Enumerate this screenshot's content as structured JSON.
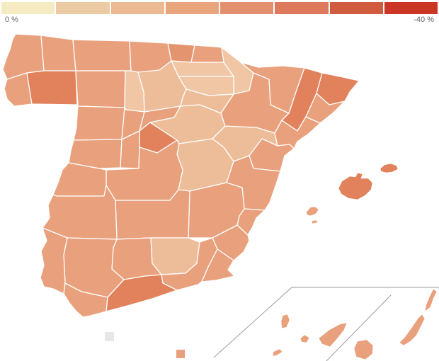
{
  "legend": {
    "min_label": "0 %",
    "max_label": "-40 %",
    "colors": [
      "#F5ECC4",
      "#EDCBA2",
      "#EBB992",
      "#E7A47D",
      "#E29070",
      "#DC7A5B",
      "#D15B3F",
      "#CB3523"
    ]
  },
  "palette": {
    "base": "#E9A07C",
    "mid": "#E59470",
    "light": "#F0C6A4",
    "tan": "#EDBD9A",
    "dark": "#E1825C",
    "gray": "#E7E7E7"
  },
  "map": {
    "inset_line_color": "#9a9a9a",
    "provinces": {
      "coruna": {
        "name": "A Coruña",
        "shade": "base"
      },
      "lugo": {
        "name": "Lugo",
        "shade": "base"
      },
      "pontevedra": {
        "name": "Pontevedra",
        "shade": "base"
      },
      "ourense": {
        "name": "Ourense",
        "shade": "dark"
      },
      "asturias": {
        "name": "Asturias",
        "shade": "base"
      },
      "leon": {
        "name": "León",
        "shade": "base"
      },
      "cantabria": {
        "name": "Cantabria",
        "shade": "base"
      },
      "palencia": {
        "name": "Palencia",
        "shade": "light"
      },
      "bizkaia": {
        "name": "Bizkaia",
        "shade": "mid"
      },
      "gipuzkoa": {
        "name": "Gipuzkoa",
        "shade": "base"
      },
      "araba": {
        "name": "Araba/Álava",
        "shade": "light"
      },
      "navarra": {
        "name": "Navarra",
        "shade": "light"
      },
      "larioja": {
        "name": "La Rioja",
        "shade": "light"
      },
      "burgos": {
        "name": "Burgos",
        "shade": "tan"
      },
      "soria": {
        "name": "Soria",
        "shade": "tan"
      },
      "zamora": {
        "name": "Zamora",
        "shade": "base"
      },
      "valladolid": {
        "name": "Valladolid",
        "shade": "base"
      },
      "segovia": {
        "name": "Segovia",
        "shade": "base"
      },
      "salamanca": {
        "name": "Salamanca",
        "shade": "base"
      },
      "avila": {
        "name": "Ávila",
        "shade": "base"
      },
      "madrid": {
        "name": "Madrid",
        "shade": "dark"
      },
      "guadalajara": {
        "name": "Guadalajara",
        "shade": "tan"
      },
      "cuenca": {
        "name": "Cuenca",
        "shade": "tan"
      },
      "teruel": {
        "name": "Teruel",
        "shade": "tan"
      },
      "zaragoza": {
        "name": "Zaragoza",
        "shade": "base"
      },
      "huesca": {
        "name": "Huesca",
        "shade": "base"
      },
      "lleida": {
        "name": "Lleida",
        "shade": "dark"
      },
      "girona": {
        "name": "Girona",
        "shade": "dark"
      },
      "barcelona": {
        "name": "Barcelona",
        "shade": "base"
      },
      "tarragona": {
        "name": "Tarragona",
        "shade": "base"
      },
      "castellon": {
        "name": "Castellón",
        "shade": "base"
      },
      "valencia": {
        "name": "Valencia",
        "shade": "base"
      },
      "alicante": {
        "name": "Alicante",
        "shade": "base"
      },
      "murcia": {
        "name": "Murcia",
        "shade": "base"
      },
      "albacete": {
        "name": "Albacete",
        "shade": "base"
      },
      "ciudadreal": {
        "name": "Ciudad Real",
        "shade": "base"
      },
      "toledo": {
        "name": "Toledo",
        "shade": "base"
      },
      "caceres": {
        "name": "Cáceres",
        "shade": "base"
      },
      "badajoz": {
        "name": "Badajoz",
        "shade": "base"
      },
      "cordoba": {
        "name": "Córdoba",
        "shade": "base"
      },
      "jaen": {
        "name": "Jaén",
        "shade": "tan"
      },
      "granada": {
        "name": "Granada",
        "shade": "base"
      },
      "almeria": {
        "name": "Almería",
        "shade": "base"
      },
      "sevilla": {
        "name": "Sevilla",
        "shade": "base"
      },
      "huelva": {
        "name": "Huelva",
        "shade": "base"
      },
      "cadiz": {
        "name": "Cádiz",
        "shade": "base"
      },
      "malaga": {
        "name": "Málaga",
        "shade": "dark"
      }
    },
    "islands": {
      "mallorca": {
        "name": "Mallorca",
        "shade": "dark"
      },
      "menorca": {
        "name": "Menorca",
        "shade": "dark"
      },
      "ibiza": {
        "name": "Ibiza",
        "shade": "base"
      },
      "formentera": {
        "name": "Formentera",
        "shade": "base"
      },
      "lapalma": {
        "name": "La Palma",
        "shade": "base"
      },
      "elhierro": {
        "name": "El Hierro",
        "shade": "base"
      },
      "lagomera": {
        "name": "La Gomera",
        "shade": "base"
      },
      "tenerife": {
        "name": "Tenerife",
        "shade": "base"
      },
      "grancanaria": {
        "name": "Gran Canaria",
        "shade": "base"
      },
      "fuerteventura": {
        "name": "Fuerteventura",
        "shade": "base"
      },
      "lanzarote": {
        "name": "Lanzarote",
        "shade": "base"
      }
    },
    "territories": {
      "ceuta": {
        "name": "Ceuta",
        "shade": "gray"
      },
      "melilla": {
        "name": "Melilla",
        "shade": "base"
      }
    }
  }
}
